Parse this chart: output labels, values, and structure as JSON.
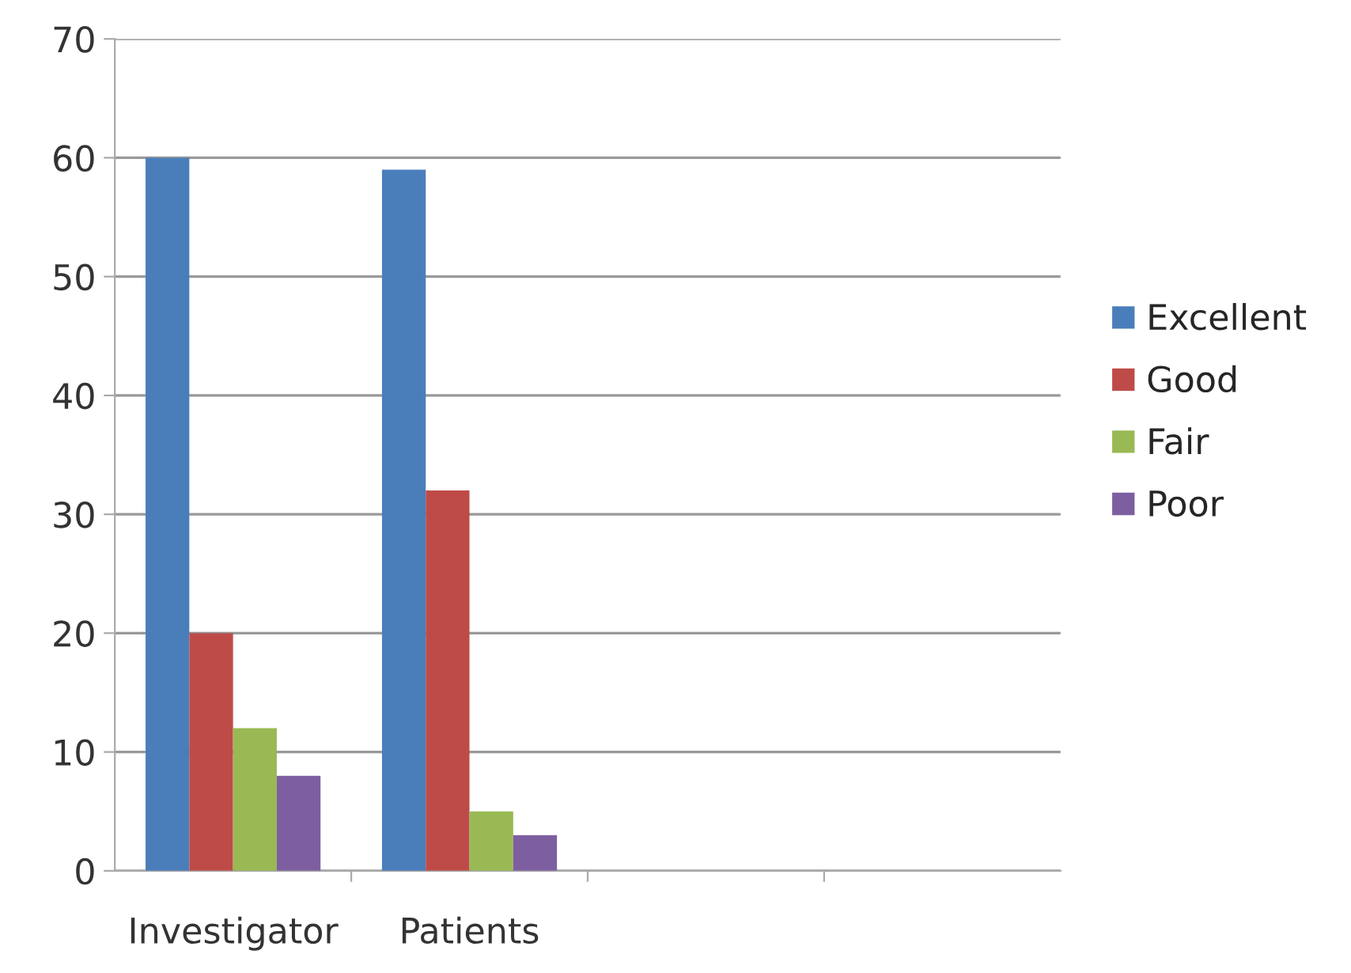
{
  "chart_data": {
    "type": "bar",
    "categories": [
      "Investigator",
      "Patients",
      null,
      null
    ],
    "series": [
      {
        "name": "Excellent",
        "color": "#4a7ebb",
        "values": [
          60,
          59,
          null,
          null
        ]
      },
      {
        "name": "Good",
        "color": "#be4b48",
        "values": [
          20,
          32,
          null,
          null
        ]
      },
      {
        "name": "Fair",
        "color": "#98b954",
        "values": [
          12,
          5,
          null,
          null
        ]
      },
      {
        "name": "Poor",
        "color": "#7d5fa0",
        "values": [
          8,
          3,
          null,
          null
        ]
      }
    ],
    "ylim": [
      0,
      70
    ],
    "yticks": [
      0,
      10,
      20,
      30,
      40,
      50,
      60,
      70
    ],
    "grid": "y",
    "legend": "right"
  }
}
